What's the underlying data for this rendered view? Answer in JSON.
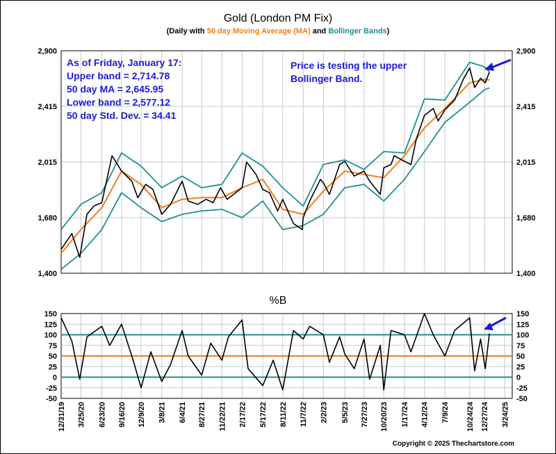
{
  "chart_data": [
    {
      "type": "line",
      "title": "Gold (London PM Fix)",
      "subtitle_parts": [
        {
          "text": "(Daily with ",
          "color": "#000000"
        },
        {
          "text": "50 day Moving Average (MA)",
          "color": "#f07d1a"
        },
        {
          "text": " and ",
          "color": "#000000"
        },
        {
          "text": "Bollinger Bands",
          "color": "#1f8f8f"
        },
        {
          "text": ")",
          "color": "#000000"
        }
      ],
      "y_ticks": [
        "2,900",
        "2,415",
        "2,015",
        "1,680",
        "1,400"
      ],
      "y_tick_values": [
        2900,
        2415,
        2015,
        1680,
        1400
      ],
      "ylim": [
        1400,
        2900
      ],
      "grid": true,
      "annotations": {
        "stats_lines": [
          "As of Friday, January 17:",
          "Upper band = 2,714.78",
          "50 day MA = 2,645.95",
          "Lower band = 2,577.12",
          "50 day Std. Dev. = 34.41"
        ],
        "note_lines": [
          "Price is testing the upper",
          "Bollinger Band."
        ]
      },
      "colors": {
        "price": "#000000",
        "ma": "#f07d1a",
        "bands": "#1f8f8f",
        "annotation": "#1a1ad6",
        "arrow": "#1a1ad6"
      },
      "series": [
        {
          "name": "Price",
          "x": [
            "12/31/19",
            "2/15/20",
            "3/20/20",
            "4/20/20",
            "5/20/20",
            "6/23/20",
            "8/6/20",
            "9/16/20",
            "10/30/20",
            "11/25/20",
            "12/29/20",
            "1/29/21",
            "3/8/21",
            "4/15/21",
            "6/4/21",
            "6/30/21",
            "8/10/21",
            "9/15/21",
            "10/15/21",
            "11/16/21",
            "12/15/21",
            "1/20/22",
            "2/17/22",
            "3/8/22",
            "4/18/22",
            "5/17/22",
            "6/15/22",
            "7/20/22",
            "8/11/22",
            "9/26/22",
            "11/3/22",
            "11/7/22",
            "12/5/22",
            "1/20/23",
            "2/2/23",
            "2/28/23",
            "4/13/23",
            "5/5/23",
            "6/15/23",
            "7/27/23",
            "8/20/23",
            "10/5/23",
            "10/20/23",
            "11/20/23",
            "12/4/23",
            "1/17/24",
            "2/14/24",
            "3/8/24",
            "4/12/24",
            "5/20/24",
            "6/10/24",
            "7/9/24",
            "8/20/24",
            "9/26/24",
            "10/24/24",
            "11/14/24",
            "12/10/24",
            "12/30/24",
            "1/17/25"
          ],
          "values": [
            1520,
            1600,
            1480,
            1700,
            1750,
            1770,
            2060,
            1960,
            1900,
            1800,
            1880,
            1850,
            1700,
            1760,
            1900,
            1780,
            1760,
            1790,
            1770,
            1860,
            1790,
            1830,
            1860,
            2015,
            1940,
            1850,
            1830,
            1720,
            1790,
            1650,
            1620,
            1680,
            1780,
            1910,
            1890,
            1820,
            2000,
            2020,
            1930,
            1960,
            1900,
            1820,
            1980,
            2000,
            2060,
            2020,
            2000,
            2180,
            2350,
            2400,
            2310,
            2390,
            2470,
            2650,
            2750,
            2580,
            2660,
            2620,
            2714
          ]
        },
        {
          "name": "50 day MA",
          "x": [
            "12/31/19",
            "3/25/20",
            "6/23/20",
            "9/16/20",
            "12/9/20",
            "3/8/21",
            "6/4/21",
            "8/27/21",
            "11/22/21",
            "2/17/22",
            "5/17/22",
            "8/11/22",
            "11/7/22",
            "2/2/23",
            "5/5/23",
            "7/27/23",
            "10/20/23",
            "1/17/24",
            "4/12/24",
            "7/9/24",
            "10/24/24",
            "12/27/24",
            "1/17/25"
          ],
          "values": [
            1500,
            1620,
            1740,
            1960,
            1880,
            1740,
            1790,
            1800,
            1800,
            1860,
            1910,
            1730,
            1700,
            1840,
            1960,
            1940,
            1920,
            2060,
            2260,
            2400,
            2620,
            2650,
            2646
          ]
        },
        {
          "name": "Upper band",
          "x": [
            "12/31/19",
            "3/25/20",
            "6/23/20",
            "9/16/20",
            "12/9/20",
            "3/8/21",
            "6/4/21",
            "8/27/21",
            "11/22/21",
            "2/17/22",
            "5/17/22",
            "8/11/22",
            "11/7/22",
            "2/2/23",
            "5/5/23",
            "7/27/23",
            "10/20/23",
            "1/17/24",
            "4/12/24",
            "7/9/24",
            "10/24/24",
            "12/27/24",
            "1/17/25"
          ],
          "values": [
            1620,
            1760,
            1830,
            2080,
            1990,
            1860,
            1930,
            1860,
            1880,
            2080,
            1990,
            1860,
            1750,
            2000,
            2030,
            1970,
            2090,
            2080,
            2480,
            2470,
            2800,
            2760,
            2715
          ]
        },
        {
          "name": "Lower band",
          "x": [
            "12/31/19",
            "3/25/20",
            "6/23/20",
            "9/16/20",
            "12/9/20",
            "3/8/21",
            "6/4/21",
            "8/27/21",
            "11/22/21",
            "2/17/22",
            "5/17/22",
            "8/11/22",
            "11/7/22",
            "2/2/23",
            "5/5/23",
            "7/27/23",
            "10/20/23",
            "1/17/24",
            "4/12/24",
            "7/9/24",
            "10/24/24",
            "12/27/24",
            "1/17/25"
          ],
          "values": [
            1420,
            1500,
            1620,
            1830,
            1740,
            1660,
            1700,
            1720,
            1730,
            1680,
            1780,
            1620,
            1640,
            1700,
            1860,
            1880,
            1780,
            1910,
            2090,
            2300,
            2450,
            2560,
            2577
          ]
        }
      ]
    },
    {
      "type": "line",
      "title": "%B",
      "y_ticks": [
        "150",
        "125",
        "100",
        "75",
        "50",
        "25",
        "0",
        "-25",
        "-50"
      ],
      "y_tick_values": [
        150,
        125,
        100,
        75,
        50,
        25,
        0,
        -25,
        -50
      ],
      "ylim": [
        -50,
        150
      ],
      "reference_lines": [
        100,
        50,
        0
      ],
      "x_tick_labels": [
        "12/31/19",
        "3/25/20",
        "6/23/20",
        "9/16/20",
        "12/9/20",
        "3/8/21",
        "6/4/21",
        "8/27/21",
        "11/22/21",
        "2/17/22",
        "5/17/22",
        "8/11/22",
        "11/7/22",
        "2/2/23",
        "5/5/23",
        "7/27/23",
        "10/20/23",
        "1/17/24",
        "4/12/24",
        "7/9/24",
        "10/24/24",
        "12/27/24",
        "3/24/25"
      ],
      "series": [
        {
          "name": "%B",
          "x": [
            "12/31/19",
            "2/15/20",
            "3/20/20",
            "4/20/20",
            "6/23/20",
            "7/27/20",
            "9/16/20",
            "11/5/20",
            "12/9/20",
            "1/20/21",
            "3/8/21",
            "4/15/21",
            "6/4/21",
            "6/30/21",
            "8/27/21",
            "10/5/21",
            "11/22/21",
            "12/20/21",
            "2/17/22",
            "3/15/22",
            "5/17/22",
            "7/1/22",
            "8/11/22",
            "9/26/22",
            "11/7/22",
            "12/5/22",
            "2/2/23",
            "2/28/23",
            "4/13/23",
            "5/5/23",
            "6/15/23",
            "7/27/23",
            "8/20/23",
            "10/5/23",
            "10/20/23",
            "11/20/23",
            "1/17/24",
            "2/14/24",
            "4/12/24",
            "5/20/24",
            "7/9/24",
            "8/20/24",
            "10/24/24",
            "11/14/24",
            "12/10/24",
            "12/30/24",
            "1/17/25"
          ],
          "values": [
            140,
            85,
            -5,
            95,
            120,
            75,
            125,
            40,
            -25,
            60,
            -10,
            30,
            110,
            50,
            5,
            80,
            40,
            95,
            135,
            20,
            -20,
            40,
            -30,
            110,
            90,
            120,
            100,
            35,
            95,
            55,
            20,
            90,
            -5,
            75,
            -30,
            110,
            100,
            60,
            150,
            100,
            50,
            110,
            140,
            15,
            90,
            20,
            103
          ]
        }
      ]
    }
  ],
  "arrow_icon": "arrow-icon",
  "copyright": "Copyright © 2025 Thechartstore.com"
}
